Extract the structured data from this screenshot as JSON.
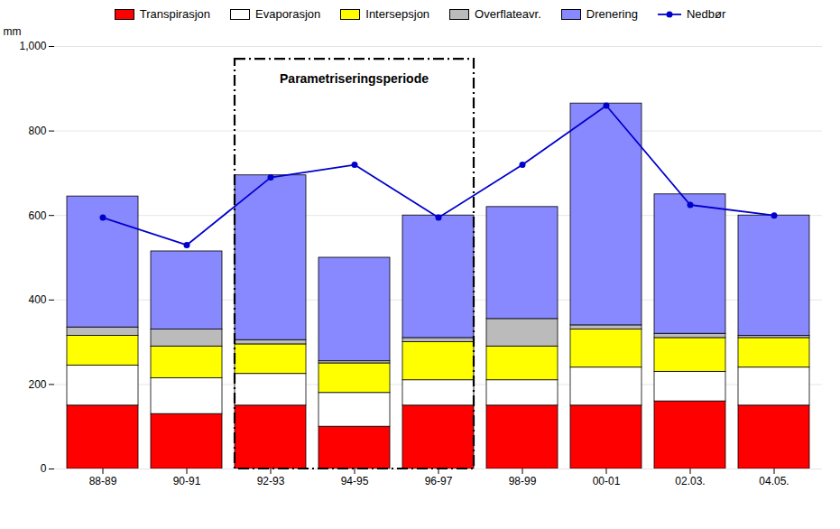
{
  "chart_data": {
    "type": "bar",
    "stacked": true,
    "categories": [
      "88-89",
      "90-91",
      "92-93",
      "94-95",
      "96-97",
      "98-99",
      "00-01",
      "02.03.",
      "04.05."
    ],
    "series": [
      {
        "name": "Transpirasjon",
        "color": "#FF0000",
        "values": [
          150,
          130,
          150,
          100,
          150,
          150,
          150,
          160,
          150
        ]
      },
      {
        "name": "Evaporasjon",
        "color": "#FFFFFF",
        "values": [
          95,
          85,
          75,
          80,
          60,
          60,
          90,
          70,
          90
        ]
      },
      {
        "name": "Intersepsjon",
        "color": "#FFFF00",
        "values": [
          70,
          75,
          70,
          70,
          90,
          80,
          90,
          80,
          70
        ]
      },
      {
        "name": "Overflateavr.",
        "color": "#BBBBBB",
        "values": [
          20,
          40,
          10,
          5,
          10,
          65,
          10,
          10,
          5
        ]
      },
      {
        "name": "Drenering",
        "color": "#8888FF",
        "values": [
          310,
          185,
          390,
          245,
          290,
          265,
          525,
          330,
          285
        ]
      },
      {
        "name": "Nedbør",
        "type": "line",
        "color": "#0000CC",
        "marker": "o",
        "values": [
          595,
          530,
          690,
          720,
          595,
          720,
          860,
          625,
          600
        ]
      }
    ],
    "ylabel": "mm",
    "ylim": [
      0,
      1000
    ],
    "yticks": [
      0,
      200,
      400,
      600,
      800,
      1000
    ],
    "grid": true,
    "legend": "upper center",
    "annotations": [
      {
        "text": "Parametriseringsperiode",
        "x_start": "92-93",
        "x_end": "96-97",
        "y": 920,
        "y_top": 970
      }
    ]
  }
}
